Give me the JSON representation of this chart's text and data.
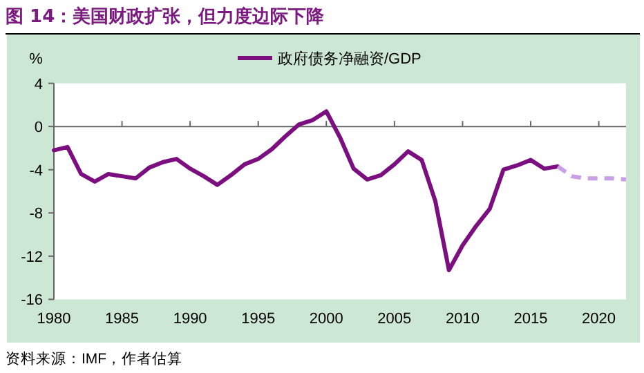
{
  "chart_data": {
    "type": "line",
    "title": "图 14：美国财政扩张，但力度边际下降",
    "ylabel": "%",
    "annotations": [
      "资料来源：IMF，作者估算"
    ],
    "xlim": [
      1980,
      2022
    ],
    "xticks": [
      1980,
      1985,
      1990,
      1995,
      2000,
      2005,
      2010,
      2015,
      2020
    ],
    "ylim": [
      -16,
      4
    ],
    "yticks": [
      -16,
      -12,
      -8,
      -4,
      0,
      4
    ],
    "legend": "top",
    "ref_lines": [
      {
        "axis": "y",
        "value": 0,
        "color": "#666666"
      }
    ],
    "series": [
      {
        "name": "政府债务净融资/GDP",
        "color": "#7b0f7f",
        "line_style": "solid",
        "x": [
          1980,
          1981,
          1982,
          1983,
          1984,
          1985,
          1986,
          1987,
          1988,
          1989,
          1990,
          1991,
          1992,
          1993,
          1994,
          1995,
          1996,
          1997,
          1998,
          1999,
          2000,
          2001,
          2002,
          2003,
          2004,
          2005,
          2006,
          2007,
          2008,
          2009,
          2010,
          2011,
          2012,
          2013,
          2014,
          2015,
          2016,
          2017
        ],
        "values": [
          -2.2,
          -1.9,
          -4.4,
          -5.1,
          -4.4,
          -4.6,
          -4.8,
          -3.8,
          -3.3,
          -3.0,
          -3.9,
          -4.6,
          -5.4,
          -4.5,
          -3.5,
          -3.0,
          -2.1,
          -0.9,
          0.2,
          0.6,
          1.4,
          -1.0,
          -3.9,
          -4.9,
          -4.5,
          -3.5,
          -2.3,
          -3.1,
          -6.9,
          -13.3,
          -11.0,
          -9.2,
          -7.6,
          -4.0,
          -3.6,
          -3.1,
          -3.9,
          -3.7
        ]
      },
      {
        "color": "#c9a0e6",
        "line_style": "dashed",
        "x": [
          2017,
          2018,
          2019,
          2020,
          2021,
          2022
        ],
        "values": [
          -3.7,
          -4.6,
          -4.8,
          -4.8,
          -4.8,
          -4.9
        ]
      }
    ]
  }
}
